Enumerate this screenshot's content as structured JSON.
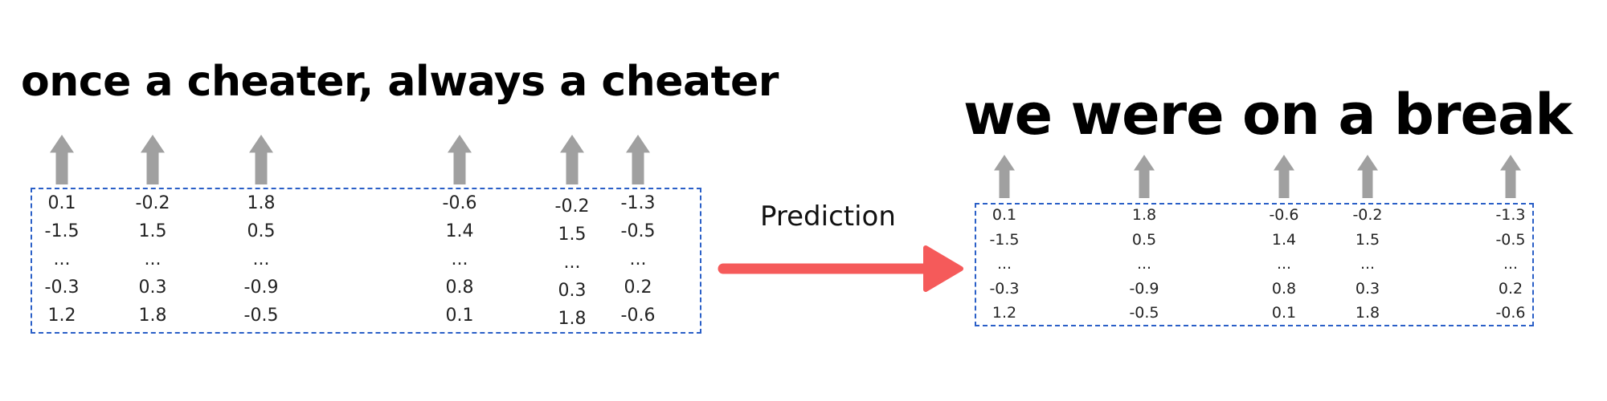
{
  "left": {
    "sentence": "once a cheater, always a cheater",
    "vectors": [
      [
        "0.1",
        "-1.5",
        "...",
        "-0.3",
        "1.2"
      ],
      [
        "-0.2",
        "1.5",
        "...",
        "0.3",
        "1.8"
      ],
      [
        "1.8",
        "0.5",
        "...",
        "-0.9",
        "-0.5"
      ],
      [
        "-0.6",
        "1.4",
        "...",
        "0.8",
        "0.1"
      ],
      [
        "-0.2",
        "1.5",
        "...",
        "0.3",
        "1.8"
      ],
      [
        "-1.3",
        "-0.5",
        "...",
        "0.2",
        "-0.6"
      ]
    ]
  },
  "right": {
    "sentence": "we were on a break",
    "vectors": [
      [
        "0.1",
        "-1.5",
        "...",
        "-0.3",
        "1.2"
      ],
      [
        "1.8",
        "0.5",
        "...",
        "-0.9",
        "-0.5"
      ],
      [
        "-0.6",
        "1.4",
        "...",
        "0.8",
        "0.1"
      ],
      [
        "-0.2",
        "1.5",
        "...",
        "0.3",
        "1.8"
      ],
      [
        "-1.3",
        "-0.5",
        "...",
        "0.2",
        "-0.6"
      ]
    ]
  },
  "prediction_label": "Prediction",
  "colors": {
    "arrow_up": "#a0a0a0",
    "prediction_arrow": "#f55a5a",
    "box_border": "#2a5fc7"
  }
}
